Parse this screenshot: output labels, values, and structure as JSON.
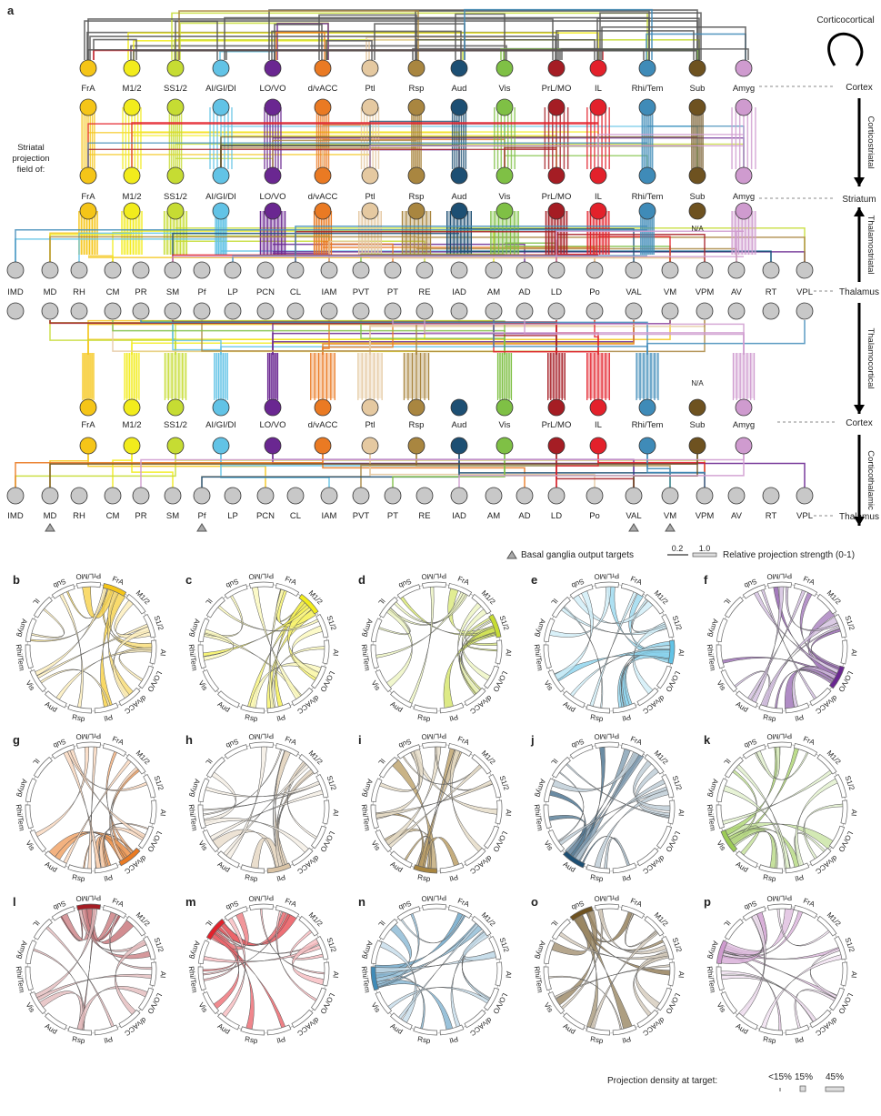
{
  "panel_a": {
    "label": "a",
    "cortex_regions": [
      "FrA",
      "M1/2",
      "SS1/2",
      "AI/GI/DI",
      "LO/VO",
      "d/vACC",
      "Ptl",
      "Rsp",
      "Aud",
      "Vis",
      "PrL/MO",
      "IL",
      "Rhi/Tem",
      "Sub",
      "Amyg"
    ],
    "region_colors": [
      "#f5c518",
      "#f2ec1c",
      "#c6dc33",
      "#62c3e6",
      "#6a2791",
      "#ea7a23",
      "#e5c9a1",
      "#a98640",
      "#1d4f73",
      "#7fc045",
      "#a51d24",
      "#e3212b",
      "#3f8bb8",
      "#6e5220",
      "#cf9bcf"
    ],
    "thalamus_nuclei": [
      "IMD",
      "MD",
      "RH",
      "CM",
      "PR",
      "SM",
      "Pf",
      "LP",
      "PCN",
      "CL",
      "IAM",
      "PVT",
      "PT",
      "RE",
      "IAD",
      "AM",
      "AD",
      "LD",
      "Po",
      "VAL",
      "VM",
      "VPM",
      "AV",
      "RT",
      "VPL"
    ],
    "striatal_label": [
      "Striatal",
      "projection",
      "field of:"
    ],
    "levels": {
      "cortex": "Cortex",
      "striatum": "Striatum",
      "thalamus": "Thalamus"
    },
    "pathways": [
      "Corticocortical",
      "Corticostriatal",
      "Thalamostriatal",
      "Thalamocortical",
      "Corticothalamic"
    ],
    "na_label": "N/A",
    "basal_ganglia_targets": [
      "MD",
      "Pf",
      "VAL",
      "VM"
    ],
    "legend": {
      "triangle_label": "Basal ganglia output targets",
      "strength_values": [
        "0.2",
        "1.0"
      ],
      "strength_label": "Relative projection strength (0-1)"
    }
  },
  "chord_segments": [
    "FrA",
    "M1/2",
    "S1/2",
    "AI",
    "LO/VO",
    "d/vACC",
    "Ptl",
    "Rsp",
    "Aud",
    "Vis",
    "Rhi/Tem",
    "Amyg",
    "IL",
    "Sub",
    "PrL/MO"
  ],
  "chord_panels": [
    {
      "label": "b",
      "source": "FrA",
      "color": "#f5c518"
    },
    {
      "label": "c",
      "source": "M1/2",
      "color": "#f2ec1c"
    },
    {
      "label": "d",
      "source": "S1/2",
      "color": "#c6dc33"
    },
    {
      "label": "e",
      "source": "AI",
      "color": "#62c3e6"
    },
    {
      "label": "f",
      "source": "LO/VO",
      "color": "#6a2791"
    },
    {
      "label": "g",
      "source": "d/vACC",
      "color": "#ea7a23"
    },
    {
      "label": "h",
      "source": "Ptl",
      "color": "#d9c3a5"
    },
    {
      "label": "i",
      "source": "Rsp",
      "color": "#a98640"
    },
    {
      "label": "j",
      "source": "Aud",
      "color": "#1d4f73"
    },
    {
      "label": "k",
      "source": "Vis",
      "color": "#9ccc55"
    },
    {
      "label": "l",
      "source": "PrL/MO",
      "color": "#a51d24"
    },
    {
      "label": "m",
      "source": "IL",
      "color": "#e3212b"
    },
    {
      "label": "n",
      "source": "Rhi/Tem",
      "color": "#3f8bb8"
    },
    {
      "label": "o",
      "source": "Sub",
      "color": "#6e5220"
    },
    {
      "label": "p",
      "source": "Amyg",
      "color": "#cf9bcf"
    }
  ],
  "density_legend": {
    "label": "Projection density at target:",
    "values": [
      "<15%",
      "15%",
      "45%"
    ]
  }
}
